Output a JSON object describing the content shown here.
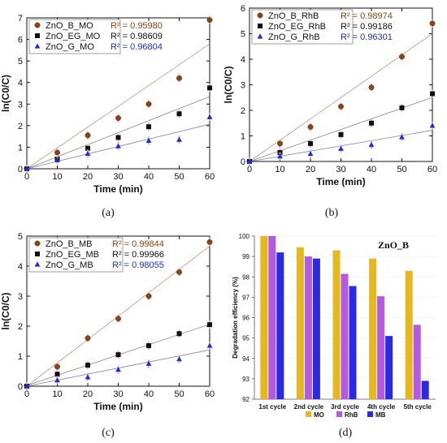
{
  "chart_data": [
    {
      "type": "scatter",
      "caption": "(a)",
      "xlabel": "Time (min)",
      "ylabel": "ln(C0/C)",
      "xlim": [
        0,
        60
      ],
      "ylim": [
        0,
        7
      ],
      "xticks": [
        "0",
        "10",
        "20",
        "30",
        "40",
        "50",
        "60"
      ],
      "yticks": [
        "0",
        "1",
        "2",
        "3",
        "4",
        "5",
        "6",
        "7"
      ],
      "legend_position": "top-left",
      "x": [
        0,
        10,
        20,
        30,
        40,
        50,
        60
      ],
      "series": [
        {
          "name": "ZnO_B_MO",
          "marker": "circle",
          "color": "#8b4513",
          "r2_label": "R² = 0.95980",
          "r2_color": "#8b4513",
          "values": [
            0,
            0.75,
            1.55,
            2.35,
            3.0,
            4.2,
            6.9
          ]
        },
        {
          "name": "ZnO_EG_MO",
          "marker": "square",
          "color": "#111111",
          "r2_label": "R² = 0.98609",
          "r2_color": "#111111",
          "values": [
            0,
            0.45,
            0.95,
            1.45,
            1.95,
            2.55,
            3.75
          ]
        },
        {
          "name": "ZnO_G_MO",
          "marker": "triangle",
          "color": "#1c2fd0",
          "r2_label": "R² = 0.96804",
          "r2_color": "#1c2fd0",
          "values": [
            0,
            0.4,
            0.7,
            1.05,
            1.3,
            1.35,
            2.4
          ]
        }
      ]
    },
    {
      "type": "scatter",
      "caption": "(b)",
      "xlabel": "Time (min)",
      "ylabel": "ln(C0/C)",
      "xlim": [
        0,
        60
      ],
      "ylim": [
        0,
        6
      ],
      "xticks": [
        "0",
        "10",
        "20",
        "30",
        "40",
        "50",
        "60"
      ],
      "yticks": [
        "0",
        "1",
        "2",
        "3",
        "4",
        "5",
        "6"
      ],
      "legend_position": "top-left",
      "x": [
        0,
        10,
        20,
        30,
        40,
        50,
        60
      ],
      "series": [
        {
          "name": "ZnO_B_RhB",
          "marker": "circle",
          "color": "#8b4513",
          "r2_label": "R² = 0.98974",
          "r2_color": "#8b4513",
          "values": [
            0,
            0.7,
            1.35,
            2.15,
            2.9,
            4.1,
            5.4
          ]
        },
        {
          "name": "ZnO_EG_RhB",
          "marker": "square",
          "color": "#111111",
          "r2_label": "R² = 0.99186",
          "r2_color": "#111111",
          "values": [
            0,
            0.35,
            0.7,
            1.05,
            1.5,
            2.1,
            2.65
          ]
        },
        {
          "name": "ZnO_G_RhB",
          "marker": "triangle",
          "color": "#1c2fd0",
          "r2_label": "R² = 0.96301",
          "r2_color": "#1c2fd0",
          "values": [
            0,
            0.2,
            0.3,
            0.5,
            0.65,
            0.95,
            1.4
          ]
        }
      ]
    },
    {
      "type": "scatter",
      "caption": "(c)",
      "xlabel": "Time (min)",
      "ylabel": "ln(C0/C)",
      "xlim": [
        0,
        60
      ],
      "ylim": [
        0,
        5
      ],
      "xticks": [
        "0",
        "10",
        "20",
        "30",
        "40",
        "50",
        "60"
      ],
      "yticks": [
        "0",
        "1",
        "2",
        "3",
        "4",
        "5"
      ],
      "legend_position": "top-left",
      "x": [
        0,
        10,
        20,
        30,
        40,
        50,
        60
      ],
      "series": [
        {
          "name": "ZnO_B_MB",
          "marker": "circle",
          "color": "#8b4513",
          "r2_label": "R² = 0.99844",
          "r2_color": "#8b4513",
          "values": [
            0,
            0.65,
            1.6,
            2.25,
            3.0,
            3.8,
            4.8
          ]
        },
        {
          "name": "ZnO_EG_MB",
          "marker": "square",
          "color": "#111111",
          "r2_label": "R² = 0.99966",
          "r2_color": "#111111",
          "values": [
            0,
            0.4,
            0.7,
            1.05,
            1.35,
            1.75,
            2.05
          ]
        },
        {
          "name": "ZnO_G_MB",
          "marker": "triangle",
          "color": "#1c2fd0",
          "r2_label": "R² = 0.98055",
          "r2_color": "#1c2fd0",
          "values": [
            0,
            0.2,
            0.3,
            0.55,
            0.75,
            0.9,
            1.35
          ]
        }
      ]
    },
    {
      "type": "bar",
      "caption": "(d)",
      "title": "ZnO_B",
      "ylabel": "Degradation efficiency (%)",
      "ylim": [
        92,
        100
      ],
      "yticks": [
        "92",
        "93",
        "94",
        "95",
        "96",
        "97",
        "98",
        "99",
        "100"
      ],
      "categories": [
        "1st cycle",
        "2nd cycle",
        "3rd cycle",
        "4th cycle",
        "5th cycle"
      ],
      "legend_position": "bottom",
      "series": [
        {
          "name": "MO",
          "color": "#e6b820",
          "values": [
            100,
            99.45,
            99.3,
            98.9,
            98.3
          ]
        },
        {
          "name": "RhB",
          "color": "#b35ae0",
          "values": [
            100,
            99.0,
            98.15,
            97.05,
            95.65
          ]
        },
        {
          "name": "MB",
          "color": "#2a2ae6",
          "values": [
            99.2,
            98.9,
            97.55,
            95.1,
            92.9
          ]
        }
      ]
    }
  ]
}
